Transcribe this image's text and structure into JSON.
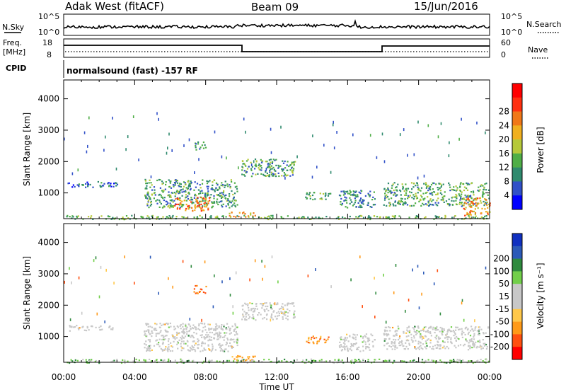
{
  "header": {
    "station": "Adak West (fitACF)",
    "beam": "Beam 09",
    "date": "15/Jun/2016"
  },
  "top_panels": {
    "nsky_label": "N.Sky",
    "nsky_ticks": [
      "10^5",
      "10^0"
    ],
    "nsearch_label": "N.Search",
    "nsearch_ticks": [
      "10^5",
      "10^0"
    ],
    "freq_label": "Freq.",
    "freq_unit": "[MHz]",
    "freq_ticks": [
      "18",
      "8"
    ],
    "nave_label": "Nave",
    "nave_ticks": [
      "60",
      "0"
    ],
    "cpid_label": "CPID",
    "cpid_text": "normalsound (fast) -157 RF"
  },
  "colors": {
    "power_scale": [
      "#0000ff",
      "#3050c8",
      "#2f8a6e",
      "#4fae47",
      "#b6c93a",
      "#f0b020",
      "#f07818",
      "#ff3010",
      "#ff0000"
    ],
    "velocity_scale": [
      "#ff0000",
      "#ff5010",
      "#ff9a18",
      "#ffc84a",
      "#c8c8c8",
      "#c8c8c8",
      "#72cf4a",
      "#2f8a3e",
      "#2c5ab8",
      "#1030c0"
    ],
    "ground_scatter": "#c8c8c8"
  },
  "chart_data": [
    {
      "type": "heatmap",
      "name": "power-panel",
      "ylabel": "Slant Range [km]",
      "y_ticks": [
        "1000",
        "2000",
        "3000",
        "4000"
      ],
      "ylim": [
        180,
        4600
      ],
      "xlim": [
        0,
        24
      ],
      "colorbar_label": "Power [dB]",
      "colorbar_ticks": [
        "4",
        "8",
        "12",
        "16",
        "20",
        "24",
        "28"
      ],
      "colorbar_range": [
        0,
        32
      ],
      "regions": [
        {
          "t0": 0.2,
          "t1": 3.0,
          "r0": 1200,
          "r1": 1380,
          "v": 8
        },
        {
          "t0": 4.5,
          "t1": 9.8,
          "r0": 550,
          "r1": 1450,
          "v": 12
        },
        {
          "t0": 6.2,
          "t1": 8.2,
          "r0": 450,
          "r1": 900,
          "v": 26
        },
        {
          "t0": 7.3,
          "t1": 8.0,
          "r0": 2380,
          "r1": 2650,
          "v": 12
        },
        {
          "t0": 9.3,
          "t1": 10.8,
          "r0": 250,
          "r1": 420,
          "v": 22
        },
        {
          "t0": 10.0,
          "t1": 13.0,
          "r0": 1550,
          "r1": 2100,
          "v": 12
        },
        {
          "t0": 13.6,
          "t1": 15.0,
          "r0": 800,
          "r1": 1050,
          "v": 14
        },
        {
          "t0": 15.5,
          "t1": 17.5,
          "r0": 550,
          "r1": 1100,
          "v": 10
        },
        {
          "t0": 18.0,
          "t1": 24.0,
          "r0": 600,
          "r1": 1350,
          "v": 13
        },
        {
          "t0": 22.5,
          "t1": 24.0,
          "r0": 300,
          "r1": 900,
          "v": 24
        },
        {
          "t0": 0.0,
          "t1": 24.0,
          "r0": 180,
          "r1": 300,
          "v": 14
        }
      ]
    },
    {
      "type": "heatmap",
      "name": "velocity-panel",
      "ylabel": "Slant Range [km]",
      "y_ticks": [
        "1000",
        "2000",
        "3000",
        "4000"
      ],
      "ylim": [
        180,
        4600
      ],
      "xlim": [
        0,
        24
      ],
      "x_ticks": [
        "00:00",
        "04:00",
        "08:00",
        "12:00",
        "16:00",
        "20:00",
        "00:00"
      ],
      "xlabel": "Time UT",
      "colorbar_label": "Velocity [m s⁻¹]",
      "colorbar_ticks": [
        "-200",
        "-100",
        "-50",
        "-15",
        "15",
        "50",
        "100",
        "200"
      ],
      "regions": [
        {
          "t0": 0.2,
          "t1": 3.0,
          "r0": 1200,
          "r1": 1380,
          "v": 0
        },
        {
          "t0": 4.5,
          "t1": 9.8,
          "r0": 550,
          "r1": 1450,
          "v": 0
        },
        {
          "t0": 7.3,
          "t1": 8.0,
          "r0": 2380,
          "r1": 2650,
          "v": -120
        },
        {
          "t0": 9.3,
          "t1": 10.8,
          "r0": 250,
          "r1": 420,
          "v": -60
        },
        {
          "t0": 10.0,
          "t1": 13.0,
          "r0": 1550,
          "r1": 2100,
          "v": 0
        },
        {
          "t0": 13.6,
          "t1": 15.0,
          "r0": 800,
          "r1": 1050,
          "v": -70
        },
        {
          "t0": 15.5,
          "t1": 17.5,
          "r0": 550,
          "r1": 1100,
          "v": 0
        },
        {
          "t0": 18.0,
          "t1": 24.0,
          "r0": 600,
          "r1": 1350,
          "v": 0
        },
        {
          "t0": 0.0,
          "t1": 24.0,
          "r0": 180,
          "r1": 300,
          "v": 30
        }
      ]
    }
  ]
}
